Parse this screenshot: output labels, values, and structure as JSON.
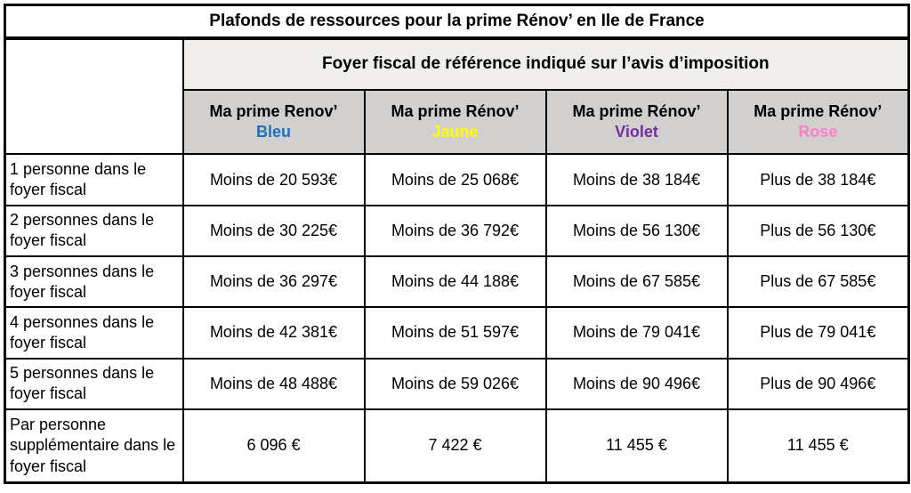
{
  "title": "Plafonds de ressources pour la prime Rénov’ en Ile de France",
  "table": {
    "group_header": "Foyer fiscal de référence indiqué sur l’avis d’imposition",
    "columns": [
      {
        "label": "Ma prime Renov’",
        "tier": "Bleu",
        "color": "#1f6fc0"
      },
      {
        "label": "Ma prime Rénov’",
        "tier": "Jaune",
        "color": "#ffff00"
      },
      {
        "label": "Ma prime Rénov’",
        "tier": "Violet",
        "color": "#7030a0"
      },
      {
        "label": "Ma prime Rénov’",
        "tier": "Rose",
        "color": "#f980c8"
      }
    ],
    "rows": [
      {
        "label": "1 personne dans le foyer fiscal",
        "values": [
          "Moins de 20 593€",
          "Moins de 25 068€",
          "Moins de 38 184€",
          "Plus de 38 184€"
        ]
      },
      {
        "label": "2 personnes dans le foyer fiscal",
        "values": [
          "Moins de 30 225€",
          "Moins de 36 792€",
          "Moins de 56 130€",
          "Plus de 56 130€"
        ]
      },
      {
        "label": "3 personnes dans le foyer fiscal",
        "values": [
          "Moins de 36 297€",
          "Moins de 44 188€",
          "Moins de 67 585€",
          "Plus de 67 585€"
        ]
      },
      {
        "label": "4 personnes dans le foyer fiscal",
        "values": [
          "Moins de 42 381€",
          "Moins de 51 597€",
          "Moins de 79 041€",
          "Plus de 79 041€"
        ]
      },
      {
        "label": "5 personnes dans le foyer fiscal",
        "values": [
          "Moins de 48 488€",
          "Moins de 59 026€",
          "Moins de 90 496€",
          "Plus de 90 496€"
        ]
      },
      {
        "label": "Par personne supplémentaire dans le foyer fiscal",
        "values": [
          "6 096 €",
          "7 422 €",
          "11 455 €",
          "11 455 €"
        ]
      }
    ]
  },
  "colors": {
    "group_header_bg": "#f0efeb",
    "column_header_bg": "#d1d0ce",
    "border": "#000000"
  }
}
